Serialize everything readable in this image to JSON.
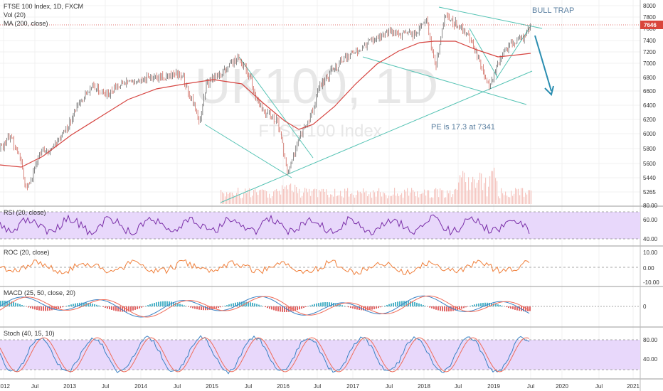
{
  "main": {
    "title": "FTSE 100 Index, 1D, FXCM",
    "vol_label": "Vol (20)",
    "ma_label": "MA (200, close)",
    "watermark_big": "UK100, 1D",
    "watermark_small": "FTSE 100 Index",
    "annotation_trap": "BULL TRAP",
    "annotation_pe": "PE is 17.3 at 7341",
    "price_badge": "7646",
    "y_ticks": [
      "8000",
      "7800",
      "7600",
      "7400",
      "7200",
      "7000",
      "6800",
      "6600",
      "6400",
      "6200",
      "6000",
      "5800",
      "5600",
      "5440",
      "5265"
    ]
  },
  "panes": {
    "rsi": {
      "label": "RSI (20, close)",
      "ticks": [
        "80.00",
        "60.00",
        "40.00"
      ]
    },
    "roc": {
      "label": "ROC (20, close)",
      "ticks": [
        "10.00",
        "0.00",
        "-10.00"
      ]
    },
    "macd": {
      "label": "MACD (25, 50, close, 20)",
      "ticks": [
        "0"
      ]
    },
    "stoch": {
      "label": "Stoch (40, 15, 10)",
      "ticks": [
        "80.00",
        "40.00"
      ]
    }
  },
  "x_axis": [
    "2012",
    "Jul",
    "2013",
    "Jul",
    "2014",
    "Jul",
    "2015",
    "Jul",
    "2016",
    "Jul",
    "2017",
    "Jul",
    "2018",
    "Jul",
    "2019",
    "Jul",
    "2020",
    "Jul",
    "2021"
  ],
  "colors": {
    "candle_up": "#3a3a3a",
    "candle_down": "#c0392b",
    "ma": "#d64541",
    "trendline": "#55c3b4",
    "arrow": "#2a8db0",
    "rsi": "#7a2ea8",
    "roc": "#f0803c",
    "stoch_k": "#3b82c4",
    "stoch_d": "#ef6c5a",
    "band": "#e8d8fb"
  },
  "chart_data": {
    "type": "line",
    "title": "FTSE 100 Index, 1D, FXCM",
    "x": [
      "2012",
      "2012-07",
      "2013",
      "2013-07",
      "2014",
      "2014-07",
      "2015",
      "2015-07",
      "2016",
      "2016-07",
      "2017",
      "2017-07",
      "2018",
      "2018-07",
      "2019",
      "2019-07"
    ],
    "series": [
      {
        "name": "FTSE 100 Index",
        "values": [
          5700,
          5500,
          6100,
          6550,
          6750,
          6800,
          6700,
          6500,
          5900,
          6700,
          7200,
          7400,
          7500,
          7700,
          6900,
          7500
        ]
      },
      {
        "name": "MA (200, close)",
        "values": [
          5550,
          5520,
          5800,
          6300,
          6550,
          6700,
          6650,
          6600,
          6250,
          6250,
          6900,
          7300,
          7400,
          7550,
          7300,
          7200
        ]
      }
    ],
    "ylim": [
      5265,
      8000
    ],
    "price_label": 7646,
    "annotations": [
      "BULL TRAP",
      "PE is 17.3 at 7341"
    ]
  }
}
